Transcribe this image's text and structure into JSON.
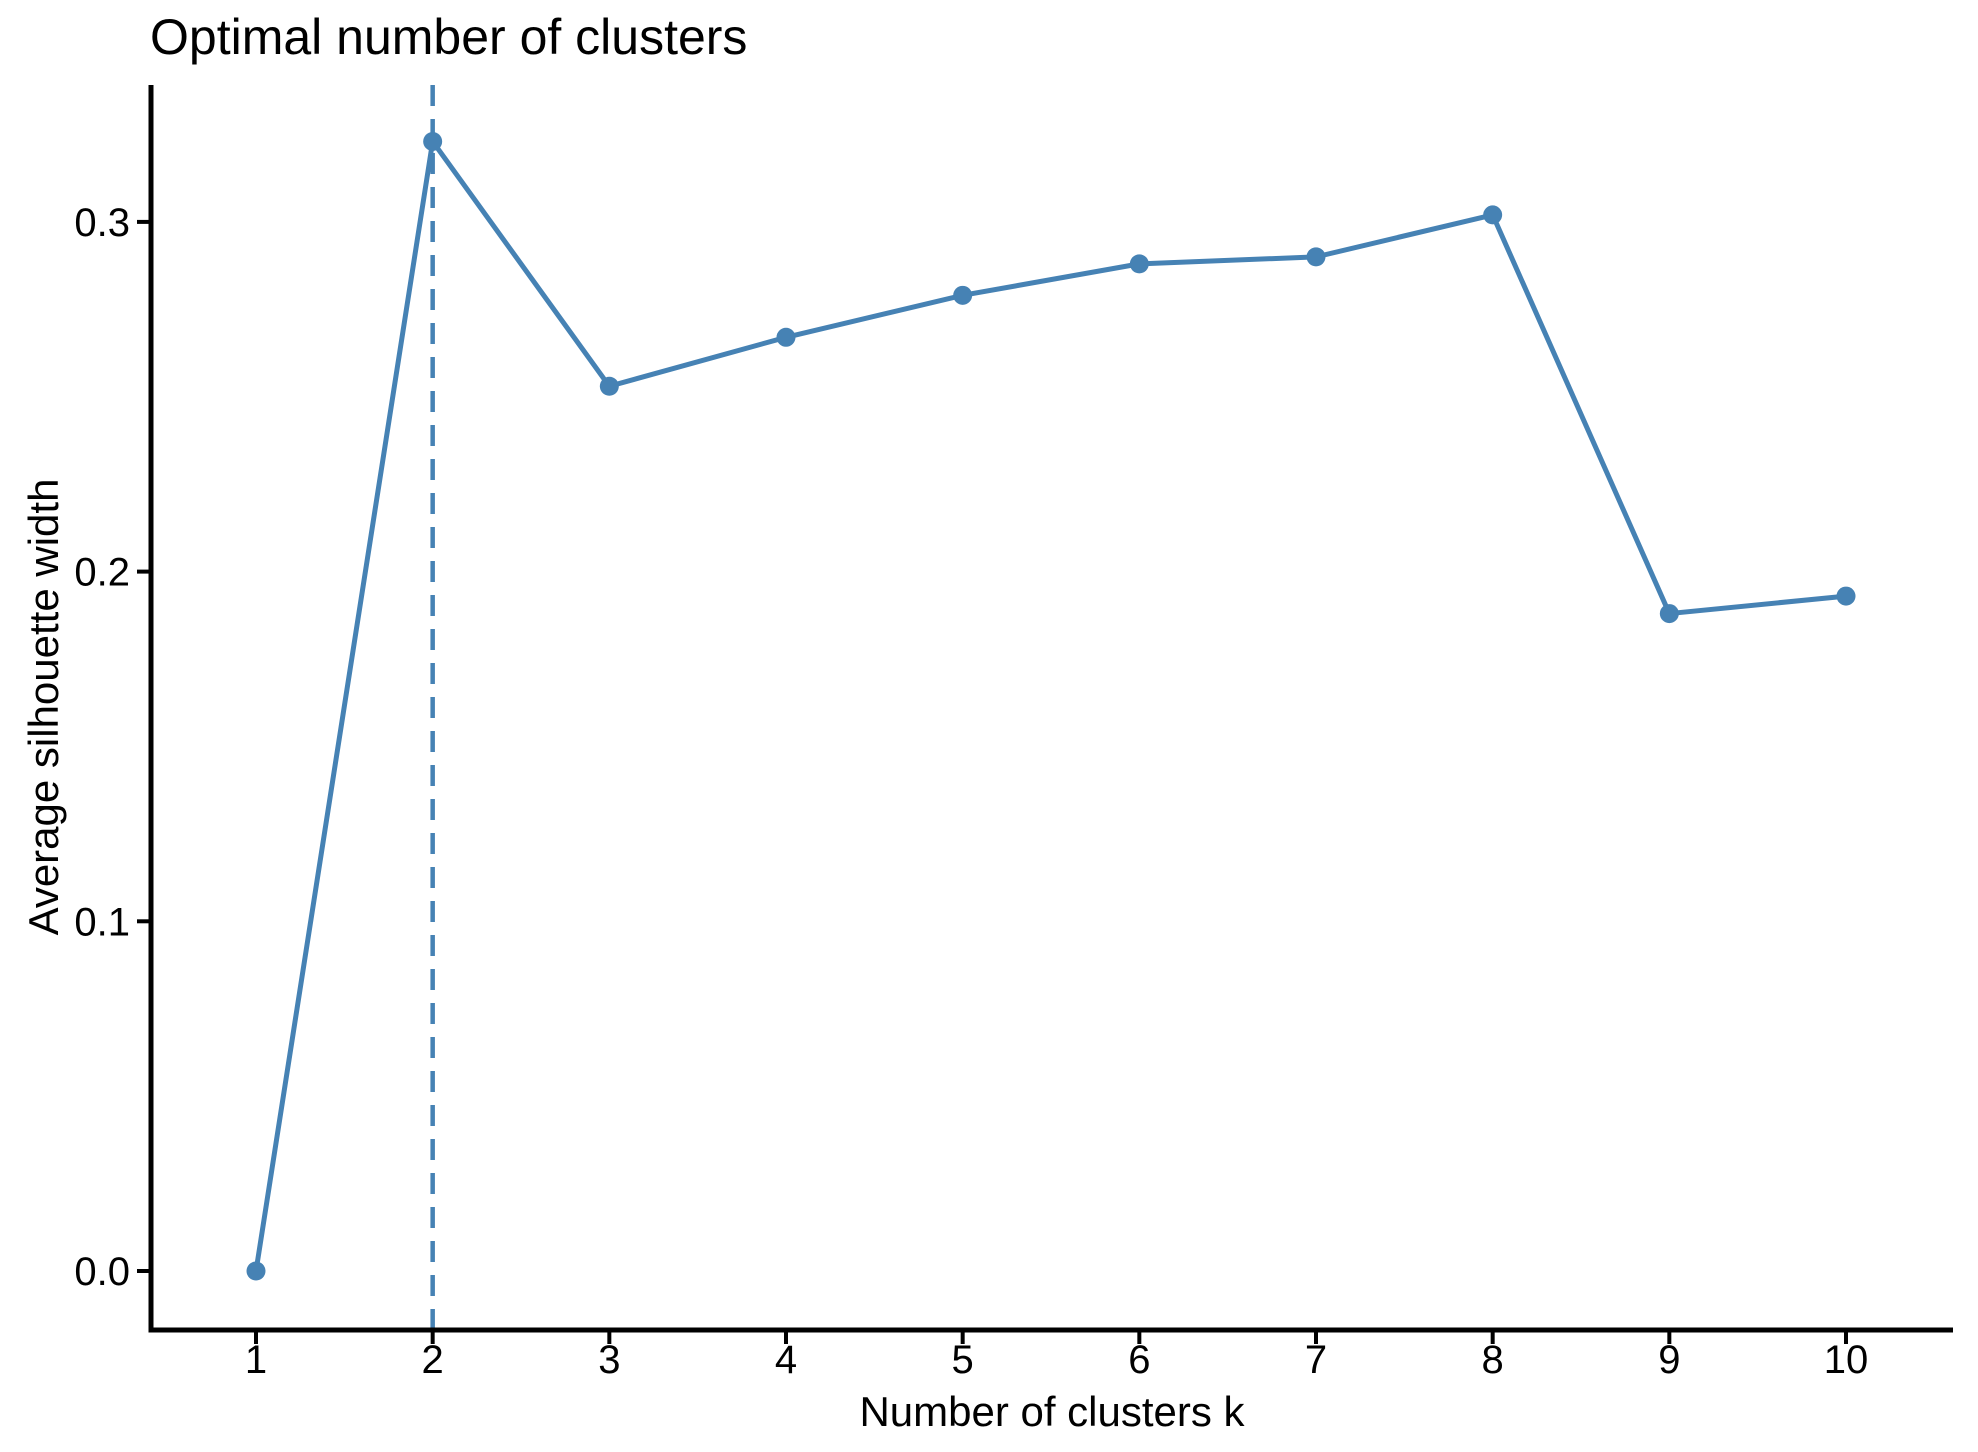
{
  "colors": {
    "accent": "#4682B4",
    "axis": "#000000",
    "text": "#000000",
    "background": "#FFFFFF"
  },
  "title": "Optimal number of clusters",
  "chart_data": {
    "type": "line",
    "title": "Optimal number of clusters",
    "xlabel": "Number of clusters k",
    "ylabel": "Average silhouette width",
    "x": [
      1,
      2,
      3,
      4,
      5,
      6,
      7,
      8,
      9,
      10
    ],
    "x_tick_labels": [
      "1",
      "2",
      "3",
      "4",
      "5",
      "6",
      "7",
      "8",
      "9",
      "10"
    ],
    "y_ticks": [
      0.0,
      0.1,
      0.2,
      0.3
    ],
    "y_tick_labels": [
      "0.0",
      "0.1",
      "0.2",
      "0.3"
    ],
    "series": [
      {
        "name": "Average silhouette width",
        "values": [
          0.0,
          0.323,
          0.253,
          0.267,
          0.279,
          0.288,
          0.29,
          0.302,
          0.188,
          0.193
        ]
      }
    ],
    "optimal_k": 2,
    "dashed_vline_x": 2,
    "marker": "circle",
    "line_color": "#4682B4",
    "grid": false,
    "legend_position": "none",
    "xlim": [
      0.4,
      10.6
    ],
    "ylim": [
      -0.017,
      0.339
    ]
  }
}
